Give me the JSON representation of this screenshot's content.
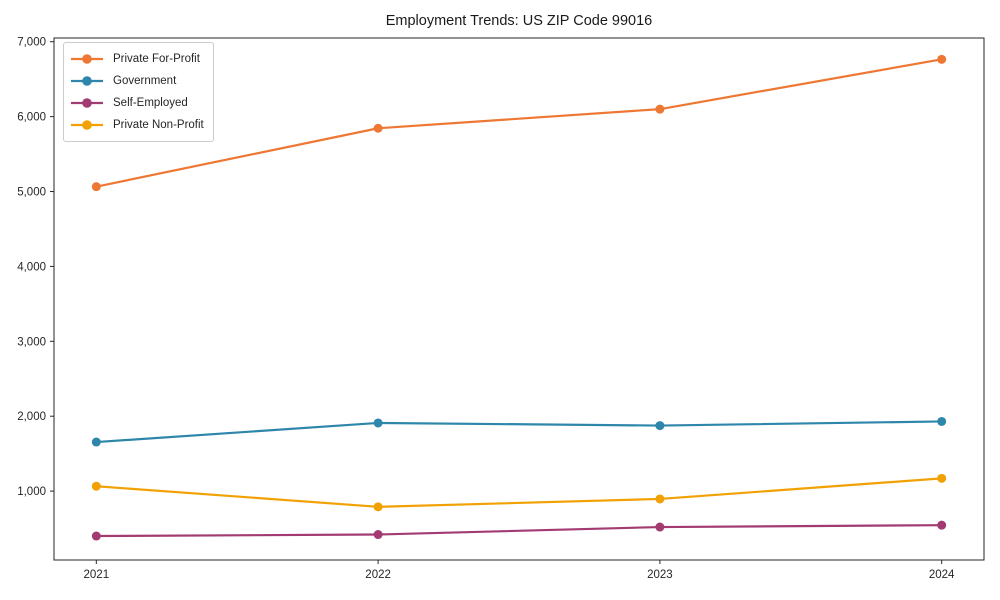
{
  "title": "Employment Trends: US ZIP Code 99016",
  "chart_data": {
    "type": "line",
    "title": "Employment Trends: US ZIP Code 99016",
    "xlabel": "",
    "ylabel": "",
    "x": [
      "2021",
      "2022",
      "2023",
      "2024"
    ],
    "series": [
      {
        "name": "Private For-Profit",
        "color": "#ee7733",
        "values": [
          5065,
          5845,
          6100,
          6765
        ]
      },
      {
        "name": "Government",
        "color": "#2e86ab",
        "values": [
          1655,
          1910,
          1875,
          1930
        ]
      },
      {
        "name": "Self-Employed",
        "color": "#a23b72",
        "values": [
          400,
          420,
          520,
          545
        ]
      },
      {
        "name": "Private Non-Profit",
        "color": "#f2a104",
        "values": [
          1065,
          790,
          895,
          1170
        ]
      }
    ],
    "ylim": [
      80,
      7050
    ],
    "yticks": [
      1000,
      2000,
      3000,
      4000,
      5000,
      6000,
      7000
    ],
    "grid": false,
    "legend_position": "upper-left",
    "marker": "circle",
    "axis_color": "#262626",
    "text_color": "#262626"
  }
}
